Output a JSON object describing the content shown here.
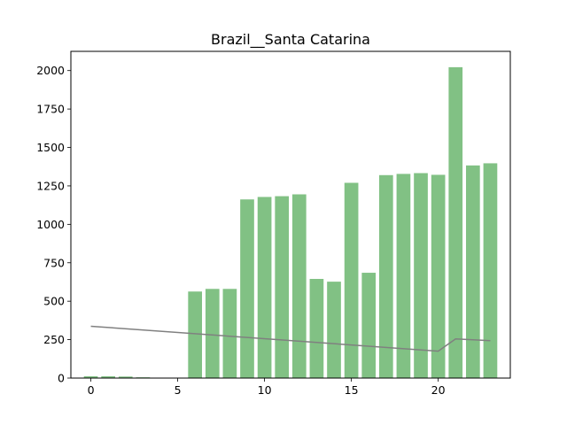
{
  "chart_data": {
    "type": "bar",
    "title": "Brazil__Santa Catarina",
    "xlabel": "",
    "ylabel": "",
    "x": [
      0,
      1,
      2,
      3,
      4,
      5,
      6,
      7,
      8,
      9,
      10,
      11,
      12,
      13,
      14,
      15,
      16,
      17,
      18,
      19,
      20,
      21,
      22,
      23
    ],
    "series": [
      {
        "type": "bar",
        "color": "#81c184",
        "values": [
          12,
          12,
          10,
          5,
          0,
          0,
          563,
          580,
          580,
          1162,
          1178,
          1183,
          1195,
          645,
          627,
          1270,
          685,
          1320,
          1328,
          1333,
          1322,
          2022,
          1383,
          1397
        ]
      },
      {
        "type": "line",
        "color": "#808080",
        "points": [
          [
            0,
            337
          ],
          [
            20,
            175
          ],
          [
            21,
            255
          ],
          [
            23,
            243
          ]
        ]
      }
    ],
    "xlim": [
      -1.15,
      24.15
    ],
    "ylim": [
      0,
      2125
    ],
    "xticks": [
      "0",
      "5",
      "10",
      "15",
      "20"
    ],
    "yticks": [
      "0",
      "250",
      "500",
      "750",
      "1000",
      "1250",
      "1500",
      "1750",
      "2000"
    ],
    "grid": false,
    "legend": "none"
  }
}
